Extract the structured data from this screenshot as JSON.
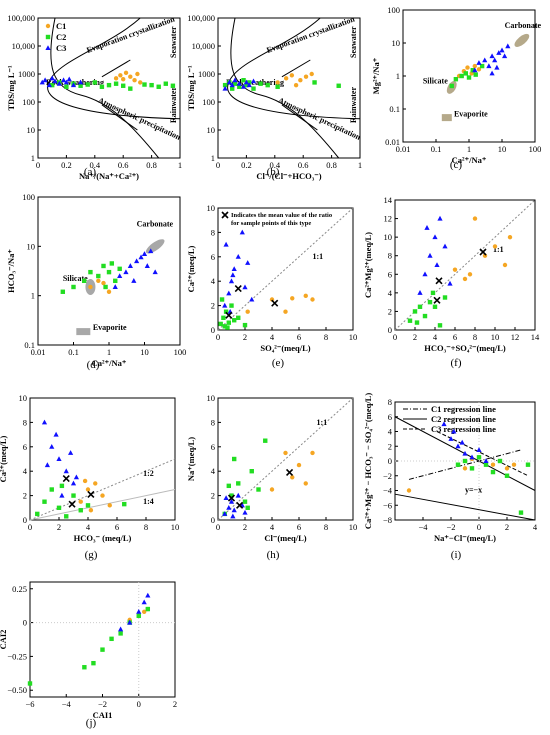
{
  "colors": {
    "C1": "#f5a623",
    "C2": "#22dd22",
    "C3": "#1010ff",
    "mean": "#000000",
    "region": "#b5a98a",
    "region_grey": "#a8a8a8"
  },
  "legend": [
    "C1",
    "C2",
    "C3"
  ],
  "mean_note": "Indicates the mean value of the ratio for sample points of this type",
  "regression_legend": [
    "C1 regression line",
    "C2 regression line",
    "C3 regression line"
  ],
  "chart_data": [
    {
      "id": "a",
      "type": "scatter",
      "panel_label": "(a)",
      "xlabel": "Na⁺/(Na⁺+Ca²⁺)",
      "ylabel": "TDS/mg L⁻¹",
      "xlim": [
        0,
        1
      ],
      "ylim": [
        1,
        100000
      ],
      "ylog": true,
      "xticks": [
        "0",
        "0.2",
        "0.4",
        "0.6",
        "0.8",
        "1"
      ],
      "yticks": [
        "1",
        "10",
        "100",
        "1000",
        "10,000",
        "100,000"
      ],
      "annotations": [
        "Seawater",
        "Evaporation crystallization",
        "Rock weathering",
        "Atmospheric precipitation",
        "Rainwater"
      ],
      "series": [
        {
          "name": "C1",
          "marker": "circle",
          "x": [
            0.55,
            0.58,
            0.62,
            0.65,
            0.68,
            0.7,
            0.72,
            0.6
          ],
          "y": [
            700,
            900,
            1100,
            800,
            600,
            1000,
            500,
            650
          ]
        },
        {
          "name": "C2",
          "marker": "square",
          "x": [
            0.1,
            0.15,
            0.2,
            0.25,
            0.3,
            0.35,
            0.4,
            0.45,
            0.5,
            0.55,
            0.6,
            0.65,
            0.75,
            0.8,
            0.85,
            0.9,
            0.95
          ],
          "y": [
            400,
            500,
            350,
            450,
            380,
            420,
            500,
            350,
            400,
            450,
            380,
            300,
            420,
            400,
            350,
            450,
            380
          ]
        },
        {
          "name": "C3",
          "marker": "triangle",
          "x": [
            0.03,
            0.05,
            0.08,
            0.1,
            0.12,
            0.15,
            0.18,
            0.2,
            0.22,
            0.25,
            0.3
          ],
          "y": [
            500,
            600,
            400,
            700,
            550,
            450,
            600,
            500,
            650,
            400,
            500
          ]
        }
      ]
    },
    {
      "id": "b",
      "type": "scatter",
      "panel_label": "(b)",
      "xlabel": "Cl⁻/(Cl⁻+HCO₃⁻)",
      "ylabel": "TDS/mg L⁻¹",
      "xlim": [
        0,
        1
      ],
      "ylim": [
        1,
        100000
      ],
      "ylog": true,
      "xticks": [
        "0",
        "0.2",
        "0.4",
        "0.6",
        "0.8",
        "1"
      ],
      "yticks": [
        "1",
        "10",
        "100",
        "1000",
        "10,000",
        "100,000"
      ],
      "annotations": [
        "Seawater",
        "Evaporation crystallization",
        "Rock weathering",
        "Atmospheric precipitation",
        "Rainwater"
      ],
      "series": [
        {
          "name": "C1",
          "marker": "circle",
          "x": [
            0.42,
            0.48,
            0.52,
            0.58,
            0.62,
            0.66,
            0.55
          ],
          "y": [
            500,
            700,
            900,
            600,
            800,
            1000,
            400
          ]
        },
        {
          "name": "C2",
          "marker": "square",
          "x": [
            0.05,
            0.08,
            0.1,
            0.12,
            0.15,
            0.18,
            0.2,
            0.22,
            0.25,
            0.3,
            0.35,
            0.42,
            0.68,
            0.85
          ],
          "y": [
            400,
            500,
            300,
            450,
            350,
            600,
            400,
            500,
            300,
            450,
            400,
            350,
            500,
            380
          ]
        },
        {
          "name": "C3",
          "marker": "triangle",
          "x": [
            0.05,
            0.08,
            0.1,
            0.12,
            0.15,
            0.18,
            0.2,
            0.22,
            0.25
          ],
          "y": [
            300,
            500,
            400,
            600,
            450,
            350,
            500,
            400,
            550
          ]
        }
      ]
    },
    {
      "id": "c",
      "type": "scatter",
      "panel_label": "(c)",
      "xlabel": "Ca²⁺/Na⁺",
      "ylabel": "Mg²⁺/Na⁺",
      "xlim": [
        0.01,
        100
      ],
      "ylim": [
        0.01,
        100
      ],
      "xlog": true,
      "ylog": true,
      "xticks": [
        "0.01",
        "0.1",
        "1",
        "10",
        "100"
      ],
      "yticks": [
        "0.01",
        "0.1",
        "1",
        "10",
        "100"
      ],
      "annotations": [
        "Carbonate",
        "Silicate",
        "Evaporite"
      ],
      "series": [
        {
          "name": "C1",
          "marker": "circle",
          "x": [
            0.5,
            0.7,
            0.9,
            1.2,
            1.5,
            2.0
          ],
          "y": [
            1.0,
            1.4,
            1.8,
            1.2,
            2.0,
            1.6
          ]
        },
        {
          "name": "C2",
          "marker": "square",
          "x": [
            0.3,
            0.4,
            0.6,
            0.8,
            1.0,
            1.3,
            1.6,
            2.5
          ],
          "y": [
            0.5,
            0.8,
            1.0,
            1.2,
            0.9,
            1.5,
            1.1,
            2.0
          ]
        },
        {
          "name": "C3",
          "marker": "triangle",
          "x": [
            1.5,
            2,
            3,
            4,
            5,
            6,
            8,
            10,
            12,
            15,
            5,
            7
          ],
          "y": [
            1.5,
            2.5,
            3,
            2,
            4,
            3,
            5,
            6,
            4,
            8,
            1.2,
            1.8
          ]
        }
      ]
    },
    {
      "id": "d",
      "type": "scatter",
      "panel_label": "(d)",
      "xlabel": "Ca²⁺/Na⁺",
      "ylabel": "HCO₃⁻/Na⁺",
      "xlim": [
        0.01,
        100
      ],
      "ylim": [
        0.1,
        100
      ],
      "xlog": true,
      "ylog": true,
      "xticks": [
        "0.01",
        "0.1",
        "1",
        "10",
        "100"
      ],
      "yticks": [
        "0.1",
        "1",
        "10",
        "100"
      ],
      "annotations": [
        "Carbonate",
        "Silicate",
        "Evaporite"
      ],
      "series": [
        {
          "name": "C1",
          "marker": "circle",
          "x": [
            0.3,
            0.5,
            0.7,
            1.0
          ],
          "y": [
            1.5,
            2.0,
            1.8,
            1.2
          ]
        },
        {
          "name": "C2",
          "marker": "square",
          "x": [
            0.05,
            0.1,
            0.2,
            0.3,
            0.5,
            0.7,
            1.0,
            1.5,
            2.0,
            0.8,
            1.2
          ],
          "y": [
            1.2,
            1.5,
            2.0,
            3.0,
            2.5,
            4.0,
            3.0,
            2.0,
            3.5,
            1.5,
            4.5
          ]
        },
        {
          "name": "C3",
          "marker": "triangle",
          "x": [
            1.5,
            2,
            3,
            4,
            5,
            6,
            8,
            10,
            12,
            15,
            20
          ],
          "y": [
            1.5,
            2.5,
            3,
            4,
            2,
            5,
            6,
            7,
            4,
            8,
            3
          ]
        }
      ]
    },
    {
      "id": "e",
      "type": "scatter",
      "panel_label": "(e)",
      "xlabel": "SO₄²⁻(meq/L)",
      "ylabel": "Ca²⁺(meq/L)",
      "xlim": [
        0,
        10
      ],
      "ylim": [
        0,
        10
      ],
      "xticks": [
        "0",
        "2",
        "4",
        "6",
        "8",
        "10"
      ],
      "yticks": [
        "0",
        "2",
        "4",
        "6",
        "8",
        "10"
      ],
      "annotations": [
        "1:1"
      ],
      "means": [
        {
          "x": 0.8,
          "y": 1.2
        },
        {
          "x": 1.5,
          "y": 3.4
        },
        {
          "x": 4.2,
          "y": 2.2
        }
      ],
      "series": [
        {
          "name": "C1",
          "marker": "circle",
          "x": [
            4,
            5,
            5.5,
            6.5,
            7,
            2.2
          ],
          "y": [
            2.5,
            1.5,
            2.6,
            2.8,
            2.5,
            1.5
          ]
        },
        {
          "name": "C2",
          "marker": "square",
          "x": [
            0.2,
            0.4,
            0.5,
            0.6,
            0.8,
            1.0,
            1.2,
            1.5,
            2.0,
            0.3,
            0.7
          ],
          "y": [
            0.5,
            1.0,
            0.3,
            1.5,
            0.6,
            2.0,
            0.8,
            1.0,
            0.4,
            2.5,
            0.2
          ]
        },
        {
          "name": "C3",
          "marker": "triangle",
          "x": [
            0.5,
            0.8,
            1.0,
            1.2,
            1.5,
            1.8,
            2.0,
            2.5,
            0.6,
            1.1,
            2.2,
            0.9
          ],
          "y": [
            2.0,
            3.0,
            4.0,
            5.0,
            6.0,
            8.0,
            3.5,
            2.5,
            7.0,
            4.5,
            5.5,
            1.5
          ]
        }
      ]
    },
    {
      "id": "f",
      "type": "scatter",
      "panel_label": "(f)",
      "xlabel": "HCO₃⁻+SO₄²⁻(meq/L)",
      "ylabel": "Ca²⁺Mg²⁺(meq/L)",
      "xlim": [
        0,
        14
      ],
      "ylim": [
        0,
        14
      ],
      "xticks": [
        "0",
        "2",
        "4",
        "6",
        "8",
        "10",
        "12",
        "14"
      ],
      "yticks": [
        "0",
        "2",
        "4",
        "6",
        "8",
        "10",
        "12",
        "14"
      ],
      "annotations": [
        "1:1"
      ],
      "means": [
        {
          "x": 4.2,
          "y": 3.2
        },
        {
          "x": 4.4,
          "y": 5.3
        },
        {
          "x": 8.8,
          "y": 8.4
        }
      ],
      "series": [
        {
          "name": "C1",
          "marker": "circle",
          "x": [
            6,
            7,
            8,
            9,
            10,
            11,
            11.5,
            7.5
          ],
          "y": [
            6.5,
            5.5,
            12,
            8,
            9,
            7,
            10,
            6
          ]
        },
        {
          "name": "C2",
          "marker": "square",
          "x": [
            1.5,
            2,
            2.5,
            3,
            3.5,
            4,
            4.5,
            5,
            2.2,
            3.8
          ],
          "y": [
            1.0,
            2.0,
            2.5,
            1.5,
            3.0,
            2.5,
            0.5,
            3.5,
            0.8,
            4.0
          ]
        },
        {
          "name": "C3",
          "marker": "triangle",
          "x": [
            2.5,
            3,
            3.5,
            4,
            4.5,
            5,
            5.5,
            3.2,
            4.2
          ],
          "y": [
            4,
            6,
            8,
            10,
            12,
            9,
            5,
            11,
            7
          ]
        }
      ]
    },
    {
      "id": "g",
      "type": "scatter",
      "panel_label": "(g)",
      "xlabel": "HCO₃⁻ (meq/L)",
      "ylabel": "Ca²⁺(meq/L)",
      "xlim": [
        0,
        10
      ],
      "ylim": [
        0,
        10
      ],
      "xticks": [
        "0",
        "2",
        "4",
        "6",
        "8",
        "10"
      ],
      "yticks": [
        "0",
        "2",
        "4",
        "6",
        "8",
        "10"
      ],
      "annotations": [
        "1:2",
        "1:4"
      ],
      "means": [
        {
          "x": 2.5,
          "y": 3.4
        },
        {
          "x": 2.9,
          "y": 1.3
        },
        {
          "x": 4.2,
          "y": 2.1
        }
      ],
      "series": [
        {
          "name": "C1",
          "marker": "circle",
          "x": [
            3.5,
            4,
            4.5,
            5,
            5.5,
            3.8,
            4.2
          ],
          "y": [
            1.5,
            2.5,
            3,
            2,
            1.2,
            3.2,
            0.8
          ]
        },
        {
          "name": "C2",
          "marker": "square",
          "x": [
            0.5,
            1,
            1.5,
            2,
            2.5,
            3,
            3.5,
            4,
            2.2,
            6.5
          ],
          "y": [
            0.5,
            1.5,
            2.5,
            1,
            0.3,
            2,
            0.8,
            1.2,
            2.8,
            1.3
          ]
        },
        {
          "name": "C3",
          "marker": "triangle",
          "x": [
            1,
            1.5,
            2,
            2.5,
            3,
            1.8,
            2.2,
            1.2,
            2.8,
            3.2
          ],
          "y": [
            8,
            6,
            5,
            4,
            3,
            7,
            2,
            4.5,
            5.5,
            3.5
          ]
        }
      ]
    },
    {
      "id": "h",
      "type": "scatter",
      "panel_label": "(h)",
      "xlabel": "Cl⁻(meq/L)",
      "ylabel": "Na⁺(meq/L)",
      "xlim": [
        0,
        10
      ],
      "ylim": [
        0,
        10
      ],
      "xticks": [
        "0",
        "2",
        "4",
        "6",
        "8",
        "10"
      ],
      "yticks": [
        "0",
        "2",
        "4",
        "6",
        "8",
        "10"
      ],
      "annotations": [
        "1:1"
      ],
      "means": [
        {
          "x": 1.0,
          "y": 1.8
        },
        {
          "x": 1.6,
          "y": 1.2
        },
        {
          "x": 5.3,
          "y": 3.9
        }
      ],
      "series": [
        {
          "name": "C1",
          "marker": "circle",
          "x": [
            4,
            5,
            6,
            7,
            5.5,
            6.5
          ],
          "y": [
            2.5,
            5.5,
            4.5,
            5.5,
            3.5,
            3
          ]
        },
        {
          "name": "C2",
          "marker": "square",
          "x": [
            0.5,
            1,
            1.5,
            2,
            2.5,
            3,
            3.5,
            1.2,
            2.2,
            0.8
          ],
          "y": [
            0.5,
            2,
            3,
            1.5,
            4,
            2.5,
            6.5,
            5,
            1,
            2.8
          ]
        },
        {
          "name": "C3",
          "marker": "triangle",
          "x": [
            0.5,
            0.8,
            1,
            1.2,
            1.5,
            1.8,
            2,
            0.6,
            1.1
          ],
          "y": [
            0.5,
            1,
            1.5,
            0.8,
            2,
            1.2,
            0.6,
            1.8,
            0.3
          ]
        }
      ]
    },
    {
      "id": "i",
      "type": "scatter",
      "panel_label": "(i)",
      "xlabel": "Na⁺−Cl⁻(meq/L)",
      "ylabel": "Ca²⁺+Mg²⁺ − HCO₃⁻ − SO₄²⁻(meq/L)",
      "xlim": [
        -6,
        4
      ],
      "ylim": [
        -8,
        8
      ],
      "xticks": [
        "−4",
        "−2",
        "0",
        "2",
        "4"
      ],
      "yticks": [
        "−8",
        "−6",
        "−4",
        "−2",
        "0",
        "2",
        "4",
        "6",
        "8"
      ],
      "annotations": [
        "y=−x"
      ],
      "series": [
        {
          "name": "C1",
          "marker": "circle",
          "x": [
            -5,
            -1,
            0,
            1,
            2,
            2.5,
            -0.5
          ],
          "y": [
            -4,
            -1,
            0.5,
            -0.5,
            -1,
            -0.5,
            0.3
          ]
        },
        {
          "name": "C2",
          "marker": "square",
          "x": [
            -1.5,
            -1,
            -0.5,
            0,
            0.5,
            1,
            1.5,
            2,
            3,
            3.5
          ],
          "y": [
            -0.5,
            0,
            -1,
            0.5,
            -0.5,
            -1.5,
            0,
            -2,
            -7,
            -0.5
          ]
        },
        {
          "name": "C3",
          "marker": "triangle",
          "x": [
            -2.5,
            -2,
            -1.5,
            -1,
            -0.5,
            0,
            0.5,
            -1.8,
            -1.2
          ],
          "y": [
            5,
            3,
            2,
            1,
            0.5,
            1.5,
            0,
            4,
            2.5
          ]
        }
      ]
    },
    {
      "id": "j",
      "type": "scatter",
      "panel_label": "(j)",
      "xlabel": "CAI1",
      "ylabel": "CAI2",
      "xlim": [
        -6,
        2
      ],
      "ylim": [
        -0.55,
        0.3
      ],
      "xticks": [
        "−6",
        "−4",
        "−2",
        "0",
        "2"
      ],
      "yticks": [
        "−0.50",
        "−0.25",
        "0",
        "0.25"
      ],
      "series": [
        {
          "name": "C1",
          "marker": "circle",
          "x": [
            -0.5,
            0,
            0.3,
            0.5
          ],
          "y": [
            0.02,
            0.05,
            0.08,
            0.1
          ]
        },
        {
          "name": "C2",
          "marker": "square",
          "x": [
            -6,
            -3,
            -2.5,
            -2,
            -1.5,
            -1,
            -0.5,
            0,
            0.5
          ],
          "y": [
            -0.45,
            -0.33,
            -0.3,
            -0.2,
            -0.12,
            -0.08,
            0,
            0.05,
            0.1
          ]
        },
        {
          "name": "C3",
          "marker": "triangle",
          "x": [
            -1,
            -0.5,
            0,
            0.3,
            0.5
          ],
          "y": [
            -0.05,
            0,
            0.08,
            0.15,
            0.2
          ]
        }
      ]
    }
  ]
}
